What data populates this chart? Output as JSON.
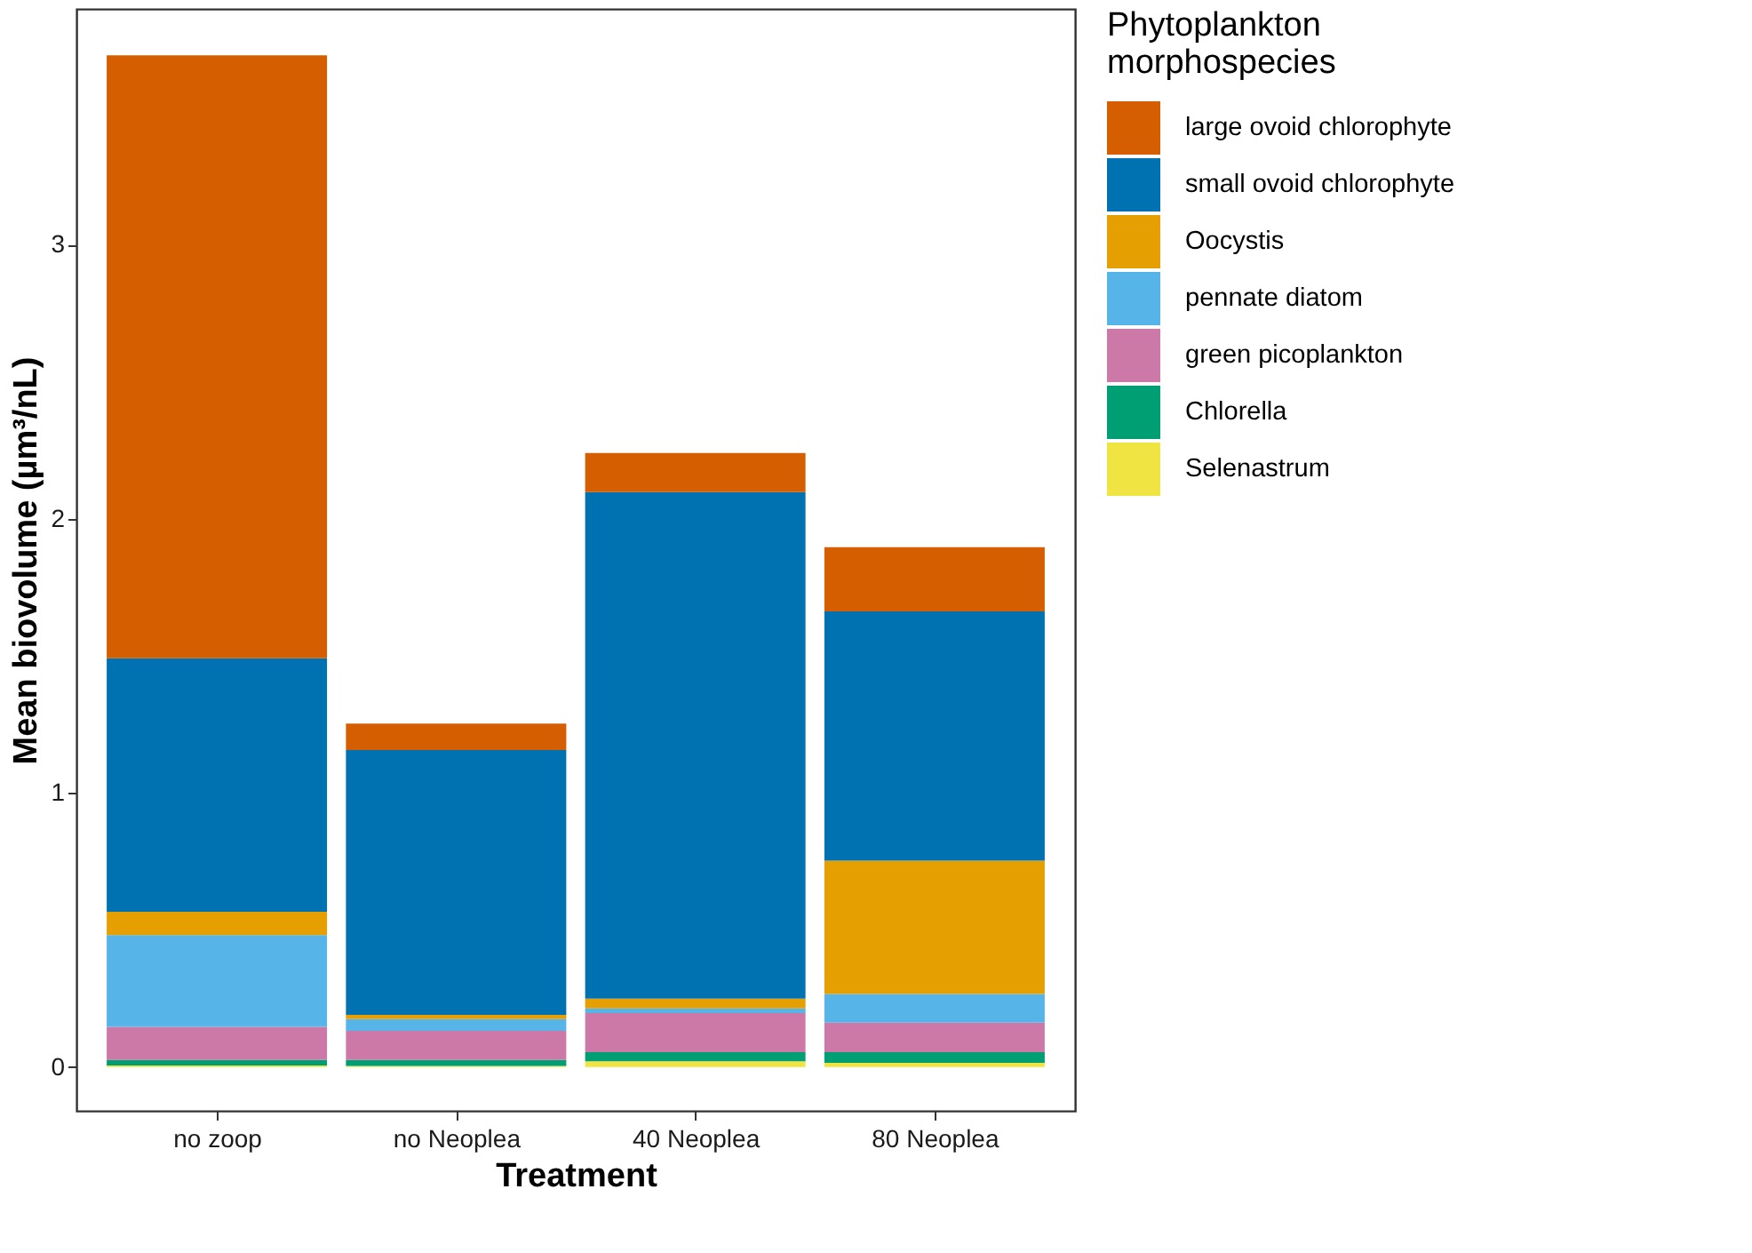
{
  "chart_data": {
    "type": "bar",
    "stacked": true,
    "xlabel": "Treatment",
    "ylabel": "Mean biovolume (µm³/nL)",
    "legend_title": "Phytoplankton morphospecies",
    "legend": "right",
    "categories": [
      "no zoop",
      "no Neoplea",
      "40 Neoplea",
      "80 Neoplea"
    ],
    "series": [
      {
        "name": "Selenastrum",
        "color": "#f0e442",
        "values": [
          0.005,
          0.004,
          0.021,
          0.015
        ]
      },
      {
        "name": "Chlorella",
        "color": "#009e73",
        "values": [
          0.021,
          0.022,
          0.033,
          0.039
        ]
      },
      {
        "name": "green picoplankton",
        "color": "#cc79a7",
        "values": [
          0.12,
          0.106,
          0.143,
          0.108
        ]
      },
      {
        "name": "pennate diatom",
        "color": "#56b4e9",
        "values": [
          0.335,
          0.043,
          0.017,
          0.104
        ]
      },
      {
        "name": "Oocystis",
        "color": "#e69f00",
        "values": [
          0.085,
          0.015,
          0.035,
          0.487
        ]
      },
      {
        "name": "small ovoid chlorophyte",
        "color": "#0072b2",
        "values": [
          0.925,
          0.966,
          1.848,
          0.909
        ]
      },
      {
        "name": "large ovoid chlorophyte",
        "color": "#d55e00",
        "values": [
          2.2,
          0.097,
          0.143,
          0.234
        ]
      }
    ],
    "ylim": [
      -0.16,
      3.86
    ],
    "yticks": [
      0,
      1,
      2,
      3
    ],
    "grid": false
  }
}
